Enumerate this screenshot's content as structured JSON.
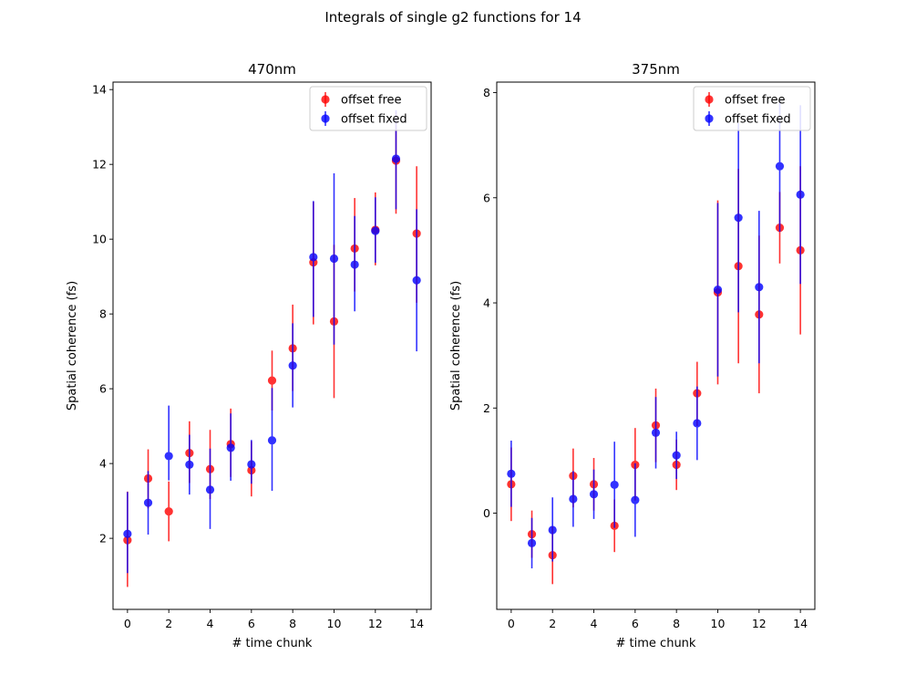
{
  "suptitle": "Integrals of single g2 functions for 14",
  "colors": {
    "offset_free": "#ff0000",
    "offset_fixed": "#0000ff"
  },
  "chart_data": [
    {
      "type": "scatter",
      "errorbars": true,
      "title": "470nm",
      "xlabel": "# time chunk",
      "ylabel": "Spatial coherence (fs)",
      "xlim": [
        -0.7,
        14.7
      ],
      "ylim": [
        0.1,
        14.2
      ],
      "xticks": [
        0,
        2,
        4,
        6,
        8,
        10,
        12,
        14
      ],
      "yticks": [
        2,
        4,
        6,
        8,
        10,
        12,
        14
      ],
      "legend_position": "top-right",
      "x": [
        0,
        1,
        2,
        3,
        4,
        5,
        6,
        7,
        8,
        9,
        10,
        11,
        12,
        13,
        14
      ],
      "series": [
        {
          "name": "offset free",
          "values": [
            1.95,
            3.6,
            2.72,
            4.28,
            3.85,
            4.52,
            3.82,
            6.22,
            7.08,
            9.38,
            7.8,
            9.75,
            10.25,
            12.1,
            10.15
          ],
          "err_low": [
            1.25,
            0.8,
            0.8,
            0.8,
            0.8,
            0.88,
            0.7,
            0.8,
            1.14,
            1.66,
            2.05,
            1.15,
            0.95,
            1.42,
            1.85
          ],
          "err_high": [
            1.3,
            0.78,
            0.8,
            0.85,
            1.05,
            0.95,
            0.78,
            0.8,
            1.17,
            1.62,
            2.05,
            1.35,
            1.0,
            1.3,
            1.8
          ]
        },
        {
          "name": "offset fixed",
          "values": [
            2.12,
            2.95,
            4.2,
            3.97,
            3.3,
            4.42,
            3.98,
            4.62,
            6.62,
            9.52,
            9.48,
            9.32,
            10.22,
            12.15,
            8.9
          ],
          "err_low": [
            1.05,
            0.85,
            0.65,
            0.8,
            1.05,
            0.88,
            0.52,
            1.35,
            1.12,
            1.6,
            2.3,
            1.25,
            0.85,
            1.35,
            1.9
          ],
          "err_high": [
            1.12,
            0.85,
            1.35,
            0.8,
            1.1,
            0.92,
            0.65,
            1.4,
            1.13,
            1.5,
            2.28,
            1.3,
            0.9,
            1.3,
            1.9
          ]
        }
      ]
    },
    {
      "type": "scatter",
      "errorbars": true,
      "title": "375nm",
      "xlabel": "# time chunk",
      "ylabel": "Spatial coherence (fs)",
      "xlim": [
        -0.7,
        14.7
      ],
      "ylim": [
        -1.83,
        8.2
      ],
      "xticks": [
        0,
        2,
        4,
        6,
        8,
        10,
        12,
        14
      ],
      "yticks": [
        0,
        2,
        4,
        6,
        8
      ],
      "legend_position": "top-right",
      "x": [
        0,
        1,
        2,
        3,
        4,
        5,
        6,
        7,
        8,
        9,
        10,
        11,
        12,
        13,
        14
      ],
      "series": [
        {
          "name": "offset free",
          "values": [
            0.55,
            -0.4,
            -0.8,
            0.71,
            0.55,
            -0.24,
            0.92,
            1.67,
            0.92,
            2.28,
            4.2,
            4.7,
            3.78,
            5.43,
            5.0
          ],
          "err_low": [
            0.7,
            0.45,
            0.55,
            0.6,
            0.5,
            0.5,
            0.68,
            0.7,
            0.48,
            0.62,
            1.75,
            1.85,
            1.5,
            0.68,
            1.6
          ],
          "err_high": [
            0.7,
            0.45,
            0.55,
            0.52,
            0.5,
            0.5,
            0.7,
            0.7,
            0.48,
            0.6,
            1.75,
            1.85,
            1.5,
            0.68,
            1.6
          ]
        },
        {
          "name": "offset fixed",
          "values": [
            0.75,
            -0.57,
            -0.32,
            0.27,
            0.36,
            0.54,
            0.25,
            1.53,
            1.1,
            1.71,
            4.25,
            5.62,
            4.3,
            6.6,
            6.06
          ],
          "err_low": [
            0.63,
            0.48,
            0.6,
            0.53,
            0.47,
            0.82,
            0.7,
            0.68,
            0.45,
            0.7,
            1.65,
            1.8,
            1.45,
            1.25,
            1.7
          ],
          "err_high": [
            0.63,
            0.48,
            0.62,
            0.53,
            0.47,
            0.82,
            0.7,
            0.68,
            0.45,
            0.7,
            1.65,
            1.8,
            1.45,
            1.25,
            1.7
          ]
        }
      ]
    }
  ]
}
